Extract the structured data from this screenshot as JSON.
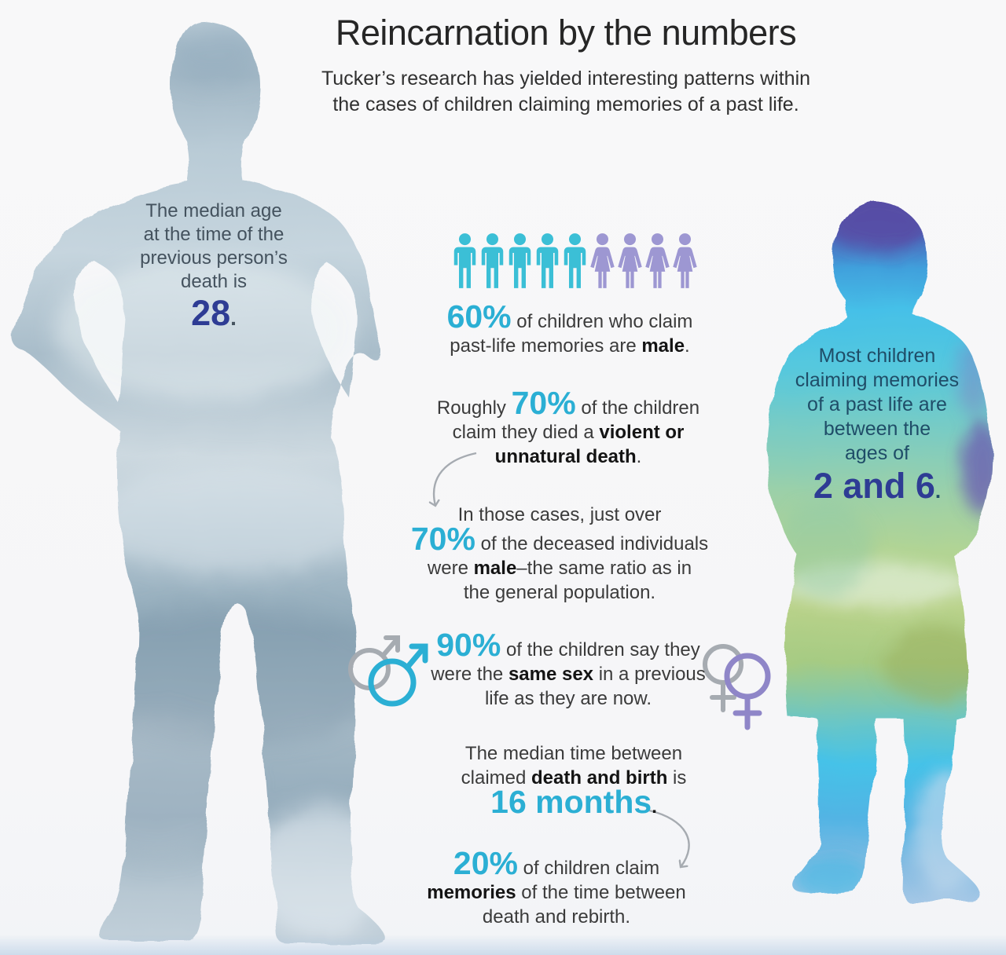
{
  "colors": {
    "teal": "#2bafd4",
    "navy": "#2e3c94",
    "teal_icon": "#3bbfd6",
    "purple_icon": "#9d97d2",
    "purple_symbol": "#8f86c8",
    "arrow_gray": "#a6abb1",
    "dotted_line": "#39427a",
    "text_plain": "#3b3b3b",
    "man_text": "#44525e",
    "child_text": "#1f4d68"
  },
  "icons": {
    "male_person": "male-person-icon",
    "female_person": "female-person-icon",
    "mars": "mars-symbol",
    "venus": "venus-symbol"
  },
  "header": {
    "title": "Reincarnation by the numbers",
    "subtitle": [
      "Tucker’s research has yielded interesting patterns within",
      "the cases of children claiming memories of a past life."
    ]
  },
  "man_callout": {
    "lines": [
      "The median age",
      "at the time of the",
      "previous person’s",
      "death is"
    ],
    "value": "28",
    "suffix": "."
  },
  "child_callout": {
    "lines": [
      "Most children",
      "claiming memories",
      "of a past life are",
      "between the",
      "ages of"
    ],
    "value": "2 and 6",
    "suffix": "."
  },
  "figure_row": {
    "male_count": 5,
    "female_count": 4
  },
  "stats": [
    {
      "id": "male-share",
      "lines": [
        [
          {
            "t": "60%",
            "c": "n"
          },
          {
            "t": " of children who claim",
            "c": "p"
          }
        ],
        [
          {
            "t": "past-life memories are ",
            "c": "p"
          },
          {
            "t": "male",
            "c": "b"
          },
          {
            "t": ".",
            "c": "p"
          }
        ]
      ]
    },
    {
      "id": "violent-death",
      "lines": [
        [
          {
            "t": "Roughly ",
            "c": "p"
          },
          {
            "t": "70%",
            "c": "n"
          },
          {
            "t": " of the children",
            "c": "p"
          }
        ],
        [
          {
            "t": "claim they died a ",
            "c": "p"
          },
          {
            "t": "violent or",
            "c": "b"
          }
        ],
        [
          {
            "t": "unnatural death",
            "c": "b"
          },
          {
            "t": ".",
            "c": "p"
          }
        ]
      ]
    },
    {
      "id": "deceased-male",
      "lines": [
        [
          {
            "t": "In those cases, just over",
            "c": "p"
          }
        ],
        [
          {
            "t": "70%",
            "c": "n"
          },
          {
            "t": " of the deceased individuals",
            "c": "p"
          }
        ],
        [
          {
            "t": "were ",
            "c": "p"
          },
          {
            "t": "male",
            "c": "b"
          },
          {
            "t": "–the same ratio as in",
            "c": "p"
          }
        ],
        [
          {
            "t": "the general population.",
            "c": "p"
          }
        ]
      ]
    },
    {
      "id": "same-sex",
      "lines": [
        [
          {
            "t": "90%",
            "c": "n"
          },
          {
            "t": " of the children say they",
            "c": "p"
          }
        ],
        [
          {
            "t": "were the ",
            "c": "p"
          },
          {
            "t": "same sex",
            "c": "b"
          },
          {
            "t": " in a previous",
            "c": "p"
          }
        ],
        [
          {
            "t": "life as they are now.",
            "c": "p"
          }
        ]
      ]
    },
    {
      "id": "median-time",
      "lines": [
        [
          {
            "t": "The median time between",
            "c": "p"
          }
        ],
        [
          {
            "t": "claimed ",
            "c": "p"
          },
          {
            "t": "death and birth",
            "c": "b"
          },
          {
            "t": " is",
            "c": "p"
          }
        ],
        [
          {
            "t": "16 months",
            "c": "n"
          },
          {
            "t": ".",
            "c": "b"
          }
        ]
      ]
    },
    {
      "id": "intermission",
      "lines": [
        [
          {
            "t": "20%",
            "c": "n"
          },
          {
            "t": " of children claim",
            "c": "p"
          }
        ],
        [
          {
            "t": "memories",
            "c": "b"
          },
          {
            "t": " of the time between",
            "c": "p"
          }
        ],
        [
          {
            "t": "death and rebirth.",
            "c": "p"
          }
        ]
      ]
    }
  ]
}
